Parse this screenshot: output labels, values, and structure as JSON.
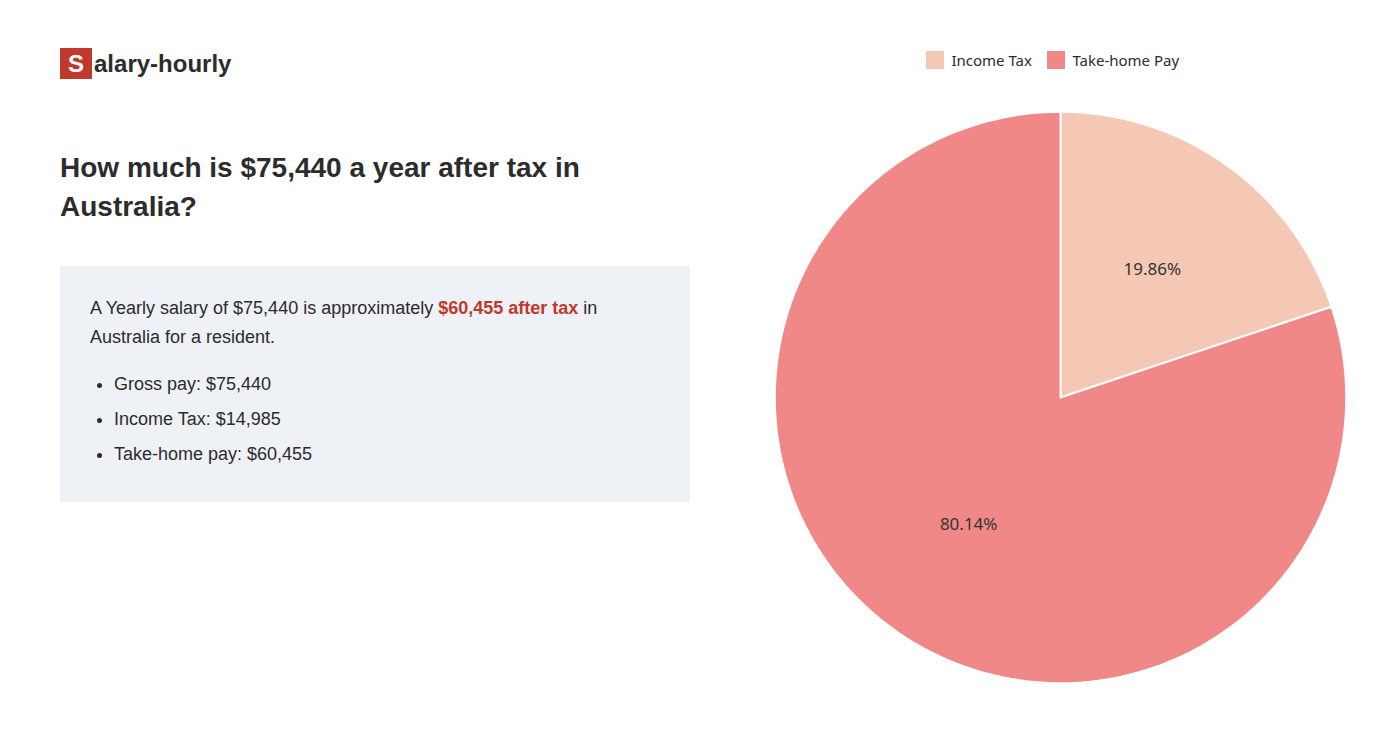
{
  "chart_data": {
    "type": "pie",
    "title": "How much is $75,440 a year after tax in Australia?",
    "annotations": [
      [
        {
          "text": "S",
          "color": "#c0392b"
        },
        {
          "text": "alary-hourly"
        }
      ],
      [
        {
          "text": "A Yearly salary of $75,440 is approximately "
        },
        {
          "text": "$60,455 after tax",
          "color": "#c0392b"
        },
        {
          "text": " in Australia for a resident."
        }
      ],
      [
        "Gross pay: $75,440",
        "Income Tax: $14,985",
        "Take-home pay: $60,455"
      ]
    ],
    "categories": [
      "Income Tax",
      "Take-home Pay"
    ],
    "values": [
      19.86,
      80.14
    ],
    "value_labels": [
      "19.86%",
      "80.14%"
    ],
    "colors": [
      "#f5c8b5",
      "#f08888"
    ],
    "data_labels": true,
    "legend": "top"
  }
}
